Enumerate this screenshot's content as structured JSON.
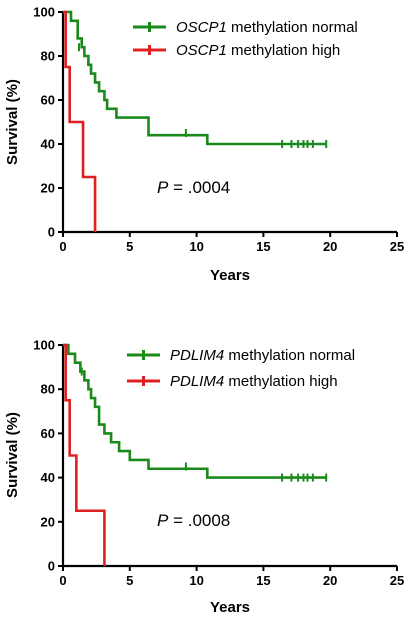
{
  "chart_data": [
    {
      "type": "line",
      "step": true,
      "xlabel": "Years",
      "ylabel": "Survival (%)",
      "xlim": [
        0,
        25
      ],
      "ylim": [
        0,
        100
      ],
      "xticks": [
        "0",
        "5",
        "10",
        "15",
        "20",
        "25"
      ],
      "yticks": [
        "0",
        "20",
        "40",
        "60",
        "80",
        "100"
      ],
      "legend_position": "top-right",
      "annotation": {
        "italic": "P",
        "rest": " = .0004"
      },
      "series": [
        {
          "gene": "OSCP1",
          "name_rest": " methylation normal",
          "color": "#1a8a1a",
          "x": [
            0,
            0.6,
            1.1,
            1.4,
            1.6,
            1.9,
            2.1,
            2.4,
            2.7,
            3.1,
            3.3,
            4.0,
            6.4,
            10.8,
            19.7
          ],
          "y": [
            100,
            96,
            88,
            84,
            80,
            76,
            72,
            68,
            64,
            60,
            56,
            52,
            44,
            40,
            40
          ],
          "censor_x": [
            1.2,
            9.2,
            16.4,
            17.1,
            17.6,
            18.0,
            18.3,
            18.7,
            19.7
          ],
          "censor_y": [
            84,
            45,
            40,
            40,
            40,
            40,
            40,
            40,
            40
          ]
        },
        {
          "gene": "OSCP1",
          "name_rest": " methylation high",
          "color": "#e02020",
          "x": [
            0,
            0.2,
            0.5,
            1.5,
            2.4
          ],
          "y": [
            100,
            75,
            50,
            25,
            0
          ],
          "censor_x": [],
          "censor_y": []
        }
      ]
    },
    {
      "type": "line",
      "step": true,
      "xlabel": "Years",
      "ylabel": "Survival (%)",
      "xlim": [
        0,
        25
      ],
      "ylim": [
        0,
        100
      ],
      "xticks": [
        "0",
        "5",
        "10",
        "15",
        "20",
        "25"
      ],
      "yticks": [
        "0",
        "20",
        "40",
        "60",
        "80",
        "100"
      ],
      "legend_position": "top-right",
      "annotation": {
        "italic": "P",
        "rest": " = .0008"
      },
      "series": [
        {
          "gene": "PDLIM4",
          "name_rest": " methylation normal",
          "color": "#1a8a1a",
          "x": [
            0,
            0.4,
            0.9,
            1.3,
            1.6,
            1.9,
            2.1,
            2.4,
            2.7,
            3.1,
            3.6,
            4.2,
            5.0,
            6.4,
            10.8,
            19.7
          ],
          "y": [
            100,
            96,
            92,
            88,
            84,
            80,
            76,
            72,
            64,
            60,
            56,
            52,
            48,
            44,
            40,
            40
          ],
          "censor_x": [
            1.4,
            9.2,
            16.4,
            17.1,
            17.6,
            18.0,
            18.3,
            18.7,
            19.7
          ],
          "censor_y": [
            88,
            45,
            40,
            40,
            40,
            40,
            40,
            40,
            40
          ]
        },
        {
          "gene": "PDLIM4",
          "name_rest": " methylation high",
          "color": "#e02020",
          "x": [
            0,
            0.2,
            0.5,
            1.0,
            3.1
          ],
          "y": [
            100,
            75,
            50,
            25,
            0
          ],
          "censor_x": [],
          "censor_y": []
        }
      ]
    }
  ]
}
